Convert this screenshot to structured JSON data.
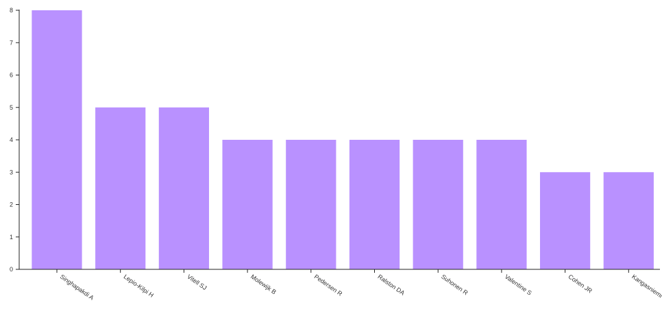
{
  "chart_data": {
    "type": "bar",
    "title": "",
    "xlabel": "",
    "ylabel": "",
    "categories": [
      "Singhapakdi A",
      "Lepio-Kilpi H",
      "Vitell SJ",
      "Molewijk B",
      "Pedersen R",
      "Ralston DA",
      "Suhonen R",
      "Valentine S",
      "Cohen JR",
      "Kangasniemi M"
    ],
    "values": [
      8,
      5,
      5,
      4,
      4,
      4,
      4,
      4,
      3,
      3
    ],
    "ylim": [
      0,
      8
    ],
    "yticks": [
      "0",
      "1",
      "2",
      "3",
      "4",
      "5",
      "6",
      "7",
      "8"
    ],
    "grid": false,
    "legend": "none",
    "bar_color": "#b388ff"
  }
}
